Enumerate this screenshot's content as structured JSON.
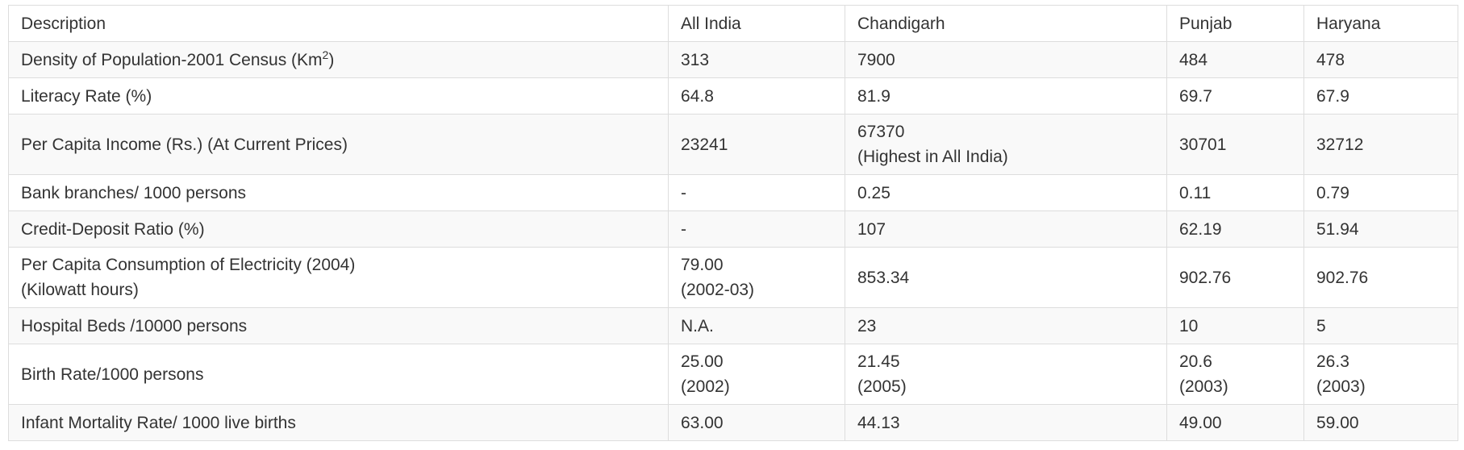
{
  "table": {
    "headers": [
      "Description",
      "All India",
      "Chandigarh",
      "Punjab",
      "Haryana"
    ],
    "rows": {
      "density": {
        "description": "Density of Population-2001 Census (Km",
        "description_sup": "2",
        "description_tail": ")",
        "all_india": "313",
        "chandigarh": "7900",
        "punjab": "484",
        "haryana": "478"
      },
      "literacy": {
        "description": "Literacy Rate (%)",
        "all_india": "64.8",
        "chandigarh": "81.9",
        "punjab": "69.7",
        "haryana": "67.9"
      },
      "income": {
        "description": "Per Capita Income (Rs.) (At Current Prices)",
        "all_india": "23241",
        "chandigarh": "67370",
        "chandigarh_note": "(Highest in All India)",
        "punjab": "30701",
        "haryana": "32712"
      },
      "bank": {
        "description": "Bank branches/ 1000 persons",
        "all_india": "-",
        "chandigarh": "0.25",
        "punjab": "0.11",
        "haryana": "0.79"
      },
      "credit": {
        "description": "Credit-Deposit Ratio (%)",
        "all_india": "-",
        "chandigarh": "107",
        "punjab": "62.19",
        "haryana": "51.94"
      },
      "electricity": {
        "description": "Per Capita Consumption of Electricity (2004)",
        "description_line2": "(Kilowatt hours)",
        "all_india": "79.00",
        "all_india_note": "(2002-03)",
        "chandigarh": "853.34",
        "punjab": "902.76",
        "haryana": "902.76"
      },
      "hospital": {
        "description": "Hospital Beds /10000 persons",
        "all_india": "N.A.",
        "chandigarh": "23",
        "punjab": "10",
        "haryana": "5"
      },
      "birth": {
        "description": "Birth Rate/1000 persons",
        "all_india": "25.00",
        "all_india_note": "(2002)",
        "chandigarh": "21.45",
        "chandigarh_note": "(2005)",
        "punjab": "20.6",
        "punjab_note": "(2003)",
        "haryana": "26.3",
        "haryana_note": "(2003)"
      },
      "infant": {
        "description": "Infant Mortality Rate/ 1000 live births",
        "all_india": "63.00",
        "chandigarh": "44.13",
        "punjab": "49.00",
        "haryana": "59.00"
      }
    }
  }
}
